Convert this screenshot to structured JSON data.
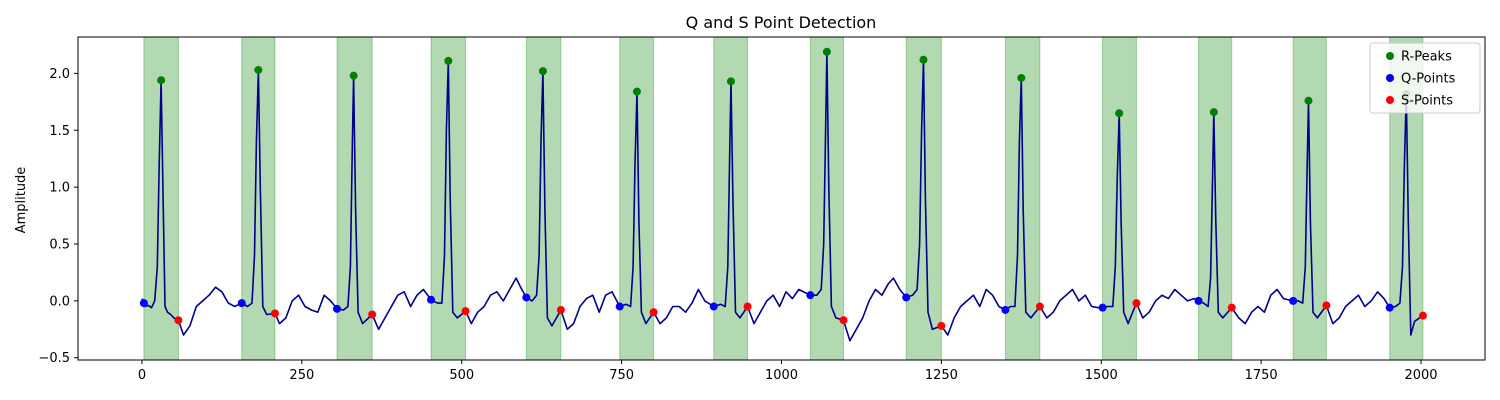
{
  "chart_data": {
    "type": "line",
    "title": "Q and S Point Detection",
    "xlabel": "",
    "ylabel": "Amplitude",
    "xlim": [
      -100,
      2100
    ],
    "ylim": [
      -0.52,
      2.32
    ],
    "xticks": [
      0,
      250,
      500,
      750,
      1000,
      1250,
      1500,
      1750,
      2000
    ],
    "xtick_labels": [
      "0",
      "250",
      "500",
      "750",
      "1000",
      "1250",
      "1500",
      "1750",
      "2000"
    ],
    "yticks": [
      -0.5,
      0.0,
      0.5,
      1.0,
      1.5,
      2.0
    ],
    "ytick_labels": [
      "−0.5",
      "0.0",
      "0.5",
      "1.0",
      "1.5",
      "2.0"
    ],
    "grid": false,
    "legend_position": "top-right",
    "colors": {
      "signal": "#00008b",
      "r_peaks": "#008000",
      "q_points": "#0000ff",
      "s_points": "#ff0000",
      "qrs_region": "#008000"
    },
    "qrs_regions": [
      [
        3,
        57
      ],
      [
        156,
        208
      ],
      [
        305,
        360
      ],
      [
        452,
        506
      ],
      [
        601,
        655
      ],
      [
        747,
        800
      ],
      [
        894,
        947
      ],
      [
        1045,
        1097
      ],
      [
        1195,
        1250
      ],
      [
        1350,
        1404
      ],
      [
        1502,
        1555
      ],
      [
        1652,
        1704
      ],
      [
        1800,
        1852
      ],
      [
        1951,
        2003
      ]
    ],
    "r_peaks": {
      "name": "R-Peaks",
      "x": [
        30,
        182,
        331,
        479,
        627,
        774,
        921,
        1071,
        1222,
        1375,
        1528,
        1676,
        1824,
        1977
      ],
      "y": [
        1.94,
        2.03,
        1.98,
        2.11,
        2.02,
        1.84,
        1.93,
        2.19,
        2.12,
        1.96,
        1.65,
        1.66,
        1.76,
        1.82
      ]
    },
    "q_points": {
      "name": "Q-Points",
      "x": [
        3,
        156,
        305,
        452,
        601,
        747,
        894,
        1045,
        1195,
        1350,
        1502,
        1652,
        1800,
        1951
      ],
      "y": [
        -0.02,
        -0.02,
        -0.07,
        0.01,
        0.03,
        -0.05,
        -0.05,
        0.05,
        0.03,
        -0.08,
        -0.06,
        0.0,
        0.0,
        -0.06
      ]
    },
    "s_points": {
      "name": "S-Points",
      "x": [
        57,
        208,
        360,
        506,
        655,
        800,
        947,
        1097,
        1250,
        1404,
        1555,
        1704,
        1852,
        2003
      ],
      "y": [
        -0.17,
        -0.11,
        -0.12,
        -0.09,
        -0.08,
        -0.1,
        -0.05,
        -0.17,
        -0.22,
        -0.05,
        -0.02,
        -0.06,
        -0.04,
        -0.13
      ]
    },
    "signal": {
      "x": [
        0,
        5,
        10,
        15,
        20,
        24,
        27,
        30,
        33,
        36,
        40,
        45,
        50,
        57,
        65,
        75,
        85,
        95,
        105,
        115,
        125,
        135,
        145,
        156,
        165,
        172,
        176,
        179,
        182,
        185,
        189,
        195,
        208,
        215,
        225,
        235,
        245,
        255,
        265,
        275,
        285,
        295,
        305,
        315,
        322,
        326,
        329,
        331,
        334,
        338,
        345,
        360,
        370,
        380,
        390,
        400,
        410,
        420,
        430,
        440,
        452,
        462,
        469,
        473,
        476,
        479,
        482,
        486,
        493,
        506,
        515,
        525,
        535,
        545,
        555,
        565,
        575,
        585,
        592,
        601,
        610,
        617,
        621,
        624,
        627,
        630,
        634,
        641,
        655,
        665,
        675,
        685,
        695,
        705,
        715,
        725,
        735,
        747,
        757,
        764,
        768,
        771,
        774,
        777,
        781,
        788,
        800,
        810,
        820,
        830,
        840,
        850,
        860,
        870,
        880,
        894,
        905,
        912,
        916,
        919,
        921,
        924,
        928,
        935,
        947,
        957,
        967,
        977,
        987,
        997,
        1007,
        1017,
        1027,
        1045,
        1055,
        1062,
        1066,
        1069,
        1071,
        1074,
        1078,
        1085,
        1097,
        1107,
        1117,
        1127,
        1137,
        1147,
        1157,
        1167,
        1175,
        1185,
        1195,
        1205,
        1212,
        1216,
        1219,
        1222,
        1225,
        1229,
        1236,
        1250,
        1260,
        1270,
        1280,
        1290,
        1300,
        1310,
        1320,
        1330,
        1340,
        1350,
        1358,
        1365,
        1369,
        1372,
        1375,
        1378,
        1382,
        1390,
        1404,
        1415,
        1425,
        1435,
        1445,
        1455,
        1465,
        1475,
        1485,
        1495,
        1502,
        1510,
        1518,
        1522,
        1525,
        1528,
        1531,
        1535,
        1542,
        1555,
        1565,
        1575,
        1585,
        1595,
        1605,
        1615,
        1625,
        1635,
        1645,
        1652,
        1660,
        1667,
        1671,
        1674,
        1676,
        1679,
        1683,
        1690,
        1704,
        1715,
        1725,
        1735,
        1745,
        1755,
        1765,
        1775,
        1785,
        1800,
        1808,
        1815,
        1819,
        1822,
        1824,
        1827,
        1831,
        1838,
        1852,
        1862,
        1872,
        1882,
        1892,
        1902,
        1912,
        1922,
        1932,
        1942,
        1951,
        1960,
        1967,
        1971,
        1974,
        1977,
        1980,
        1984,
        1990,
        2003
      ],
      "y": [
        0.02,
        -0.05,
        -0.04,
        -0.06,
        0.0,
        0.3,
        1.2,
        1.94,
        0.9,
        -0.05,
        -0.1,
        -0.12,
        -0.15,
        -0.17,
        -0.3,
        -0.22,
        -0.05,
        0.0,
        0.05,
        0.12,
        0.08,
        -0.02,
        -0.05,
        -0.02,
        -0.05,
        -0.02,
        0.4,
        1.4,
        2.03,
        1.0,
        -0.05,
        -0.12,
        -0.11,
        -0.2,
        -0.15,
        0.0,
        0.05,
        -0.05,
        -0.08,
        -0.1,
        0.05,
        0.0,
        -0.07,
        -0.08,
        -0.05,
        0.3,
        1.4,
        1.98,
        0.8,
        -0.1,
        -0.2,
        -0.12,
        -0.25,
        -0.15,
        -0.05,
        0.05,
        0.08,
        -0.05,
        0.05,
        0.1,
        0.01,
        -0.02,
        -0.02,
        0.4,
        1.5,
        2.11,
        0.9,
        -0.1,
        -0.15,
        -0.09,
        -0.2,
        -0.1,
        -0.05,
        0.05,
        0.08,
        0.0,
        0.1,
        0.2,
        0.12,
        0.03,
        0.0,
        0.05,
        0.4,
        1.4,
        2.02,
        0.8,
        -0.15,
        -0.22,
        -0.08,
        -0.25,
        -0.2,
        -0.05,
        0.02,
        0.05,
        -0.1,
        0.05,
        0.08,
        -0.05,
        -0.03,
        -0.05,
        0.3,
        1.2,
        1.84,
        0.7,
        -0.1,
        -0.2,
        -0.1,
        -0.2,
        -0.15,
        -0.05,
        -0.05,
        -0.1,
        -0.02,
        0.1,
        0.0,
        -0.05,
        -0.03,
        -0.05,
        0.3,
        1.3,
        1.93,
        0.9,
        -0.1,
        -0.15,
        -0.05,
        -0.2,
        -0.1,
        0.0,
        0.05,
        -0.05,
        0.08,
        0.02,
        0.1,
        0.05,
        0.05,
        0.1,
        0.5,
        1.5,
        2.19,
        1.0,
        -0.05,
        -0.15,
        -0.17,
        -0.35,
        -0.25,
        -0.15,
        0.0,
        0.1,
        0.05,
        0.15,
        0.2,
        0.1,
        0.03,
        0.05,
        0.1,
        0.5,
        1.5,
        2.12,
        0.9,
        -0.1,
        -0.25,
        -0.22,
        -0.3,
        -0.15,
        -0.05,
        0.0,
        0.05,
        -0.05,
        0.1,
        0.05,
        -0.05,
        -0.08,
        -0.05,
        -0.05,
        0.4,
        1.4,
        1.96,
        0.8,
        -0.1,
        -0.15,
        -0.05,
        -0.15,
        -0.1,
        0.0,
        0.05,
        0.1,
        0.0,
        0.05,
        -0.05,
        -0.06,
        -0.06,
        -0.05,
        -0.05,
        0.3,
        1.1,
        1.65,
        0.7,
        -0.1,
        -0.2,
        -0.02,
        -0.15,
        -0.1,
        0.0,
        0.05,
        0.02,
        0.1,
        0.05,
        0.0,
        0.02,
        0.0,
        -0.02,
        -0.05,
        0.2,
        1.1,
        1.66,
        0.7,
        -0.1,
        -0.15,
        -0.06,
        -0.15,
        -0.2,
        -0.1,
        -0.05,
        -0.1,
        0.05,
        0.1,
        0.02,
        0.0,
        0.0,
        -0.02,
        0.3,
        1.2,
        1.76,
        0.7,
        -0.1,
        -0.15,
        -0.04,
        -0.2,
        -0.15,
        -0.05,
        0.0,
        0.05,
        -0.05,
        0.0,
        0.08,
        0.02,
        -0.06,
        -0.05,
        -0.02,
        0.3,
        1.2,
        1.82,
        0.7,
        -0.3,
        -0.18,
        -0.13
      ]
    }
  }
}
